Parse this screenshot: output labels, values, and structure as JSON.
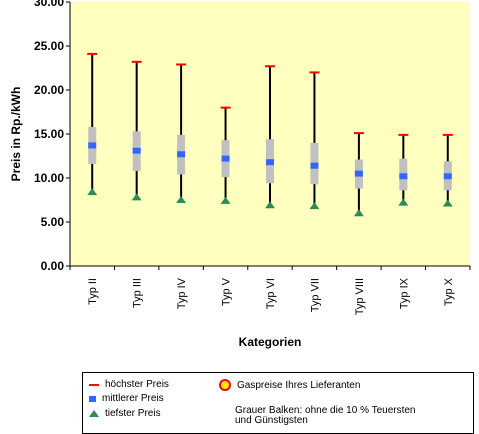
{
  "chart_data": {
    "type": "box",
    "title": "",
    "xlabel": "Kategorien",
    "ylabel": "Preis in Rp./kWh",
    "ylim": [
      0,
      30
    ],
    "yticks": [
      "0.00",
      "5.00",
      "10.00",
      "15.00",
      "20.00",
      "25.00",
      "30.00"
    ],
    "categories": [
      "Typ II",
      "Typ III",
      "Typ IV",
      "Typ V",
      "Typ VI",
      "Typ VII",
      "Typ VIII",
      "Typ IX",
      "Typ X"
    ],
    "series": [
      {
        "name": "höchster Preis",
        "values": [
          24.1,
          23.2,
          22.9,
          18.0,
          22.7,
          22.0,
          15.1,
          14.9,
          14.9
        ]
      },
      {
        "name": "mittlerer Preis",
        "values": [
          13.7,
          13.1,
          12.7,
          12.2,
          11.8,
          11.4,
          10.5,
          10.2,
          10.2
        ]
      },
      {
        "name": "tiefster Preis",
        "values": [
          8.4,
          7.8,
          7.5,
          7.4,
          6.9,
          6.8,
          6.0,
          7.2,
          7.1
        ]
      },
      {
        "name": "Grauer Balken unten",
        "values": [
          11.6,
          10.8,
          10.4,
          10.1,
          9.4,
          9.3,
          8.8,
          8.6,
          8.6
        ]
      },
      {
        "name": "Grauer Balken oben",
        "values": [
          15.8,
          15.3,
          14.9,
          14.3,
          14.4,
          14.0,
          12.1,
          12.2,
          11.9
        ]
      }
    ],
    "plot_bg": "#ffffc0",
    "colors": {
      "high": "#ff0000",
      "mean": "#3366ff",
      "low": "#2e8b57",
      "band": "#c0c0c0",
      "whisker": "#000000"
    },
    "grid": false,
    "legend_position": "bottom"
  },
  "legend": {
    "high": "höchster Preis",
    "mid": "mittlerer Preis",
    "low": "tiefster Preis",
    "gas": "Gaspreise Ihres Lieferanten",
    "note_line1": "Grauer Balken: ohne die 10 % Teuersten",
    "note_line2": "und Günstigsten"
  }
}
